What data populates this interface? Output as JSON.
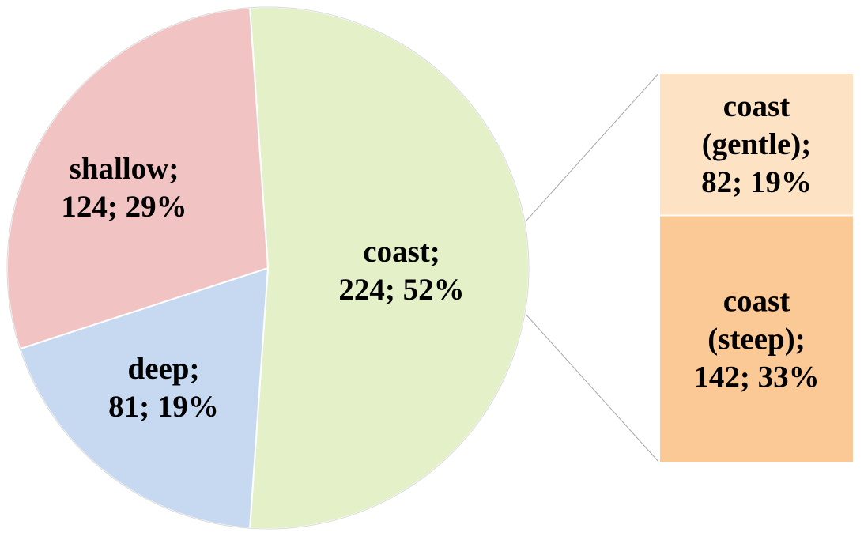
{
  "chart_data": {
    "type": "pie",
    "variant": "bar-of-pie",
    "title": "",
    "slices": [
      {
        "name": "coast",
        "value": 224,
        "percent": 52,
        "color": "#e3f0c8",
        "label_lines": [
          "coast;",
          "224; 52%"
        ]
      },
      {
        "name": "deep",
        "value": 81,
        "percent": 19,
        "color": "#c6d9f1",
        "label_lines": [
          "deep;",
          "81; 19%"
        ]
      },
      {
        "name": "shallow",
        "value": 124,
        "percent": 29,
        "color": "#f2c3c3",
        "label_lines": [
          "shallow;",
          "124; 29%"
        ]
      }
    ],
    "breakdown": {
      "of": "coast",
      "items": [
        {
          "name": "coast (gentle)",
          "value": 82,
          "percent": 19,
          "color": "#fde2c3",
          "label_lines": [
            "coast",
            "(gentle);",
            "82; 19%"
          ]
        },
        {
          "name": "coast (steep)",
          "value": 142,
          "percent": 33,
          "color": "#fbc996",
          "label_lines": [
            "coast",
            "(steep);",
            "142; 33%"
          ]
        }
      ]
    }
  }
}
